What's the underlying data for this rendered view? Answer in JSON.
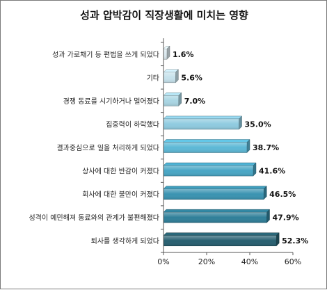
{
  "chart_data": {
    "type": "bar",
    "orientation": "horizontal",
    "title": "성과 압박감이 직장생활에 미치는 영향",
    "categories": [
      "성과 가로채기 등 편법을 쓰게 되었다",
      "기타",
      "경쟁 동료를 시기하거나 멀어졌다",
      "집중력이 하락했다",
      "결과중심으로 일을 처리하게 되었다",
      "상사에 대한 반감이 커졌다",
      "회사에 대한 불만이 커졌다",
      "성격이 예민해져 동료와의 관계가 불편해졌다",
      "퇴사를 생각하게 되었다"
    ],
    "values": [
      1.6,
      5.6,
      7.0,
      35.0,
      38.7,
      41.6,
      46.5,
      47.9,
      52.3
    ],
    "value_labels": [
      "1.6%",
      "5.6%",
      "7.0%",
      "35.0%",
      "38.7%",
      "41.6%",
      "46.5%",
      "47.9%",
      "52.3%"
    ],
    "bar_colors": [
      "#dbe9ef",
      "#c6e2ec",
      "#a9d5e3",
      "#8fcbe0",
      "#5cb8d6",
      "#48a6c5",
      "#3a93b1",
      "#2f7f99",
      "#275f70"
    ],
    "xlim": [
      0,
      60
    ],
    "x_ticks": [
      "0%",
      "20%",
      "40%",
      "60%"
    ],
    "grid": false,
    "legend": "none"
  }
}
